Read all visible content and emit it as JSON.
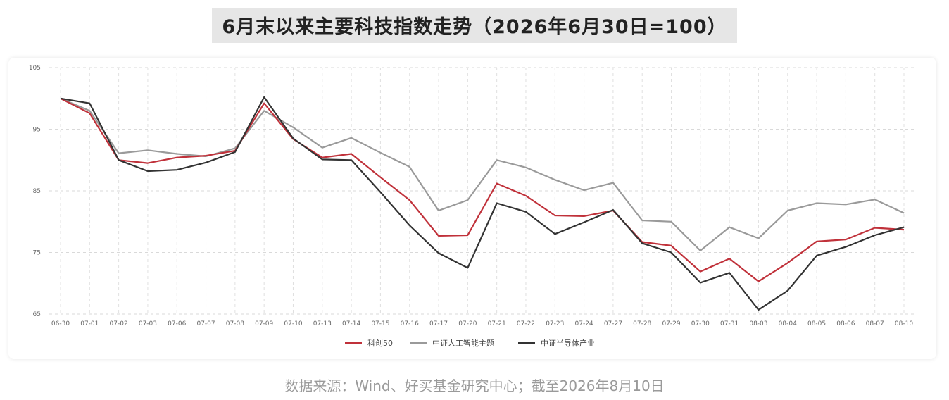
{
  "title": "6月末以来主要科技指数走势（2026年6月30日=100）",
  "source": "数据来源：Wind、好买基金研究中心；截至2026年8月10日",
  "chart_data": {
    "type": "line",
    "title": "6月末以来主要科技指数走势（2026年6月30日=100）",
    "xlabel": "",
    "ylabel": "",
    "ylim": [
      65,
      105
    ],
    "yticks": [
      "65",
      "75",
      "85",
      "95",
      "105"
    ],
    "grid": true,
    "legend_position": "bottom",
    "categories": [
      "06-30",
      "07-01",
      "07-02",
      "07-03",
      "07-06",
      "07-07",
      "07-08",
      "07-09",
      "07-10",
      "07-13",
      "07-14",
      "07-15",
      "07-16",
      "07-17",
      "07-20",
      "07-21",
      "07-22",
      "07-23",
      "07-24",
      "07-27",
      "07-28",
      "07-29",
      "07-30",
      "07-31",
      "08-03",
      "08-04",
      "08-05",
      "08-06",
      "08-07",
      "08-10"
    ],
    "series": [
      {
        "name": "科创50",
        "color": "#c0313a",
        "values": [
          100,
          97.6,
          90.0,
          89.5,
          90.4,
          90.7,
          91.5,
          99.2,
          93.4,
          90.4,
          91.0,
          87.2,
          83.5,
          77.7,
          77.8,
          86.2,
          84.2,
          81.0,
          80.9,
          81.8,
          76.7,
          76.1,
          71.9,
          74.0,
          70.3,
          73.3,
          76.8,
          77.1,
          79.0,
          78.7
        ]
      },
      {
        "name": "中证人工智能主题",
        "color": "#9a9a9a",
        "values": [
          100,
          98.0,
          91.1,
          91.6,
          91.0,
          90.6,
          91.9,
          98.0,
          95.3,
          92.0,
          93.6,
          91.2,
          88.9,
          81.8,
          83.5,
          90.0,
          88.8,
          86.8,
          85.1,
          86.3,
          80.2,
          80.0,
          75.3,
          79.1,
          77.3,
          81.8,
          83.0,
          82.8,
          83.6,
          81.4
        ]
      },
      {
        "name": "中证半导体产业",
        "color": "#333333",
        "values": [
          100,
          99.2,
          90.0,
          88.2,
          88.4,
          89.6,
          91.3,
          100.2,
          93.5,
          90.1,
          90.0,
          84.8,
          79.4,
          74.9,
          72.5,
          83.0,
          81.6,
          78.0,
          79.9,
          81.9,
          76.5,
          75.0,
          70.1,
          71.7,
          65.7,
          68.8,
          74.5,
          75.9,
          77.8,
          79.1
        ]
      }
    ]
  }
}
